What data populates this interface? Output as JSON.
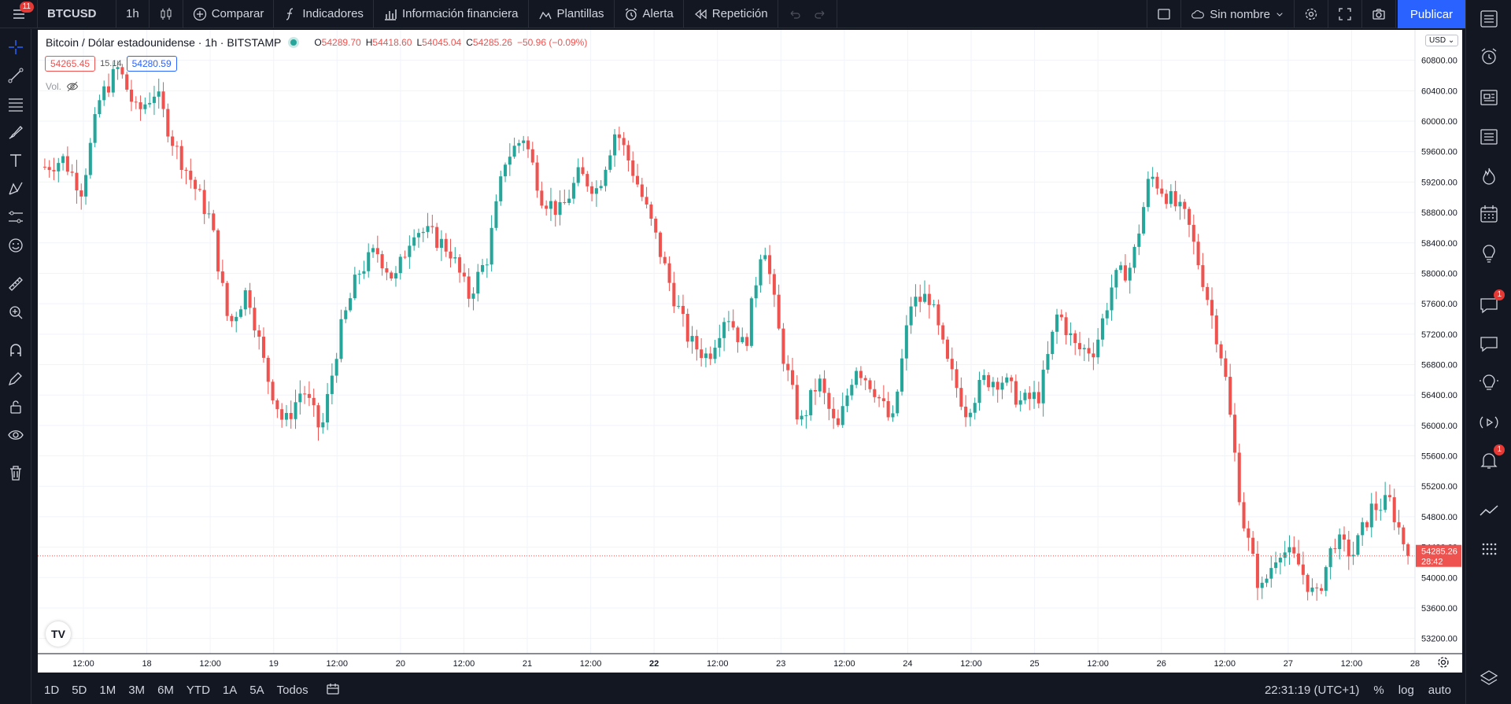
{
  "topbar": {
    "menu_badge": "11",
    "symbol": "BTCUSD",
    "interval": "1h",
    "compare": "Comparar",
    "indicators": "Indicadores",
    "financial_info": "Información financiera",
    "templates": "Plantillas",
    "alert": "Alerta",
    "replay": "Repetición",
    "layout_name": "Sin nombre",
    "publish": "Publicar"
  },
  "legend": {
    "title": "Bitcoin / Dólar estadounidense · 1h · BITSTAMP",
    "o_label": "O",
    "o_value": "54289.70",
    "h_label": "H",
    "h_value": "54418.60",
    "l_label": "L",
    "l_value": "54045.04",
    "c_label": "C",
    "c_value": "54285.26",
    "change": "−50.96 (−0.09%)",
    "bid": "54265.45",
    "spread": "15.14",
    "ask": "54280.59",
    "vol_label": "Vol."
  },
  "currency": "USD",
  "right_badges": {
    "chat": "1",
    "alerts": "1"
  },
  "bottombar": {
    "ranges": [
      "1D",
      "5D",
      "1M",
      "3M",
      "6M",
      "YTD",
      "1A",
      "5A",
      "Todos"
    ],
    "clock": "22:31:19 (UTC+1)",
    "percent": "%",
    "log": "log",
    "auto": "auto"
  },
  "colors": {
    "up": "#26a69a",
    "down": "#ef5350",
    "accent": "#2962ff",
    "bg": "#131722"
  },
  "chart_data": {
    "type": "candlestick",
    "title": "Bitcoin / Dólar estadounidense · 1h · BITSTAMP",
    "ylim": [
      53000,
      61200
    ],
    "y_ticks": [
      53200,
      53600,
      54000,
      54400,
      54800,
      55200,
      55600,
      56000,
      56400,
      56800,
      57200,
      57600,
      58000,
      58400,
      58800,
      59200,
      59600,
      60000,
      60400,
      60800
    ],
    "x_ticks": [
      "12:00",
      "18",
      "12:00",
      "19",
      "12:00",
      "20",
      "12:00",
      "21",
      "12:00",
      "22",
      "12:00",
      "23",
      "12:00",
      "24",
      "12:00",
      "25",
      "12:00",
      "26",
      "12:00",
      "27",
      "12:00",
      "28"
    ],
    "x_tick_bold": [
      false,
      false,
      false,
      false,
      false,
      false,
      false,
      false,
      false,
      true,
      false,
      false,
      false,
      false,
      false,
      false,
      false,
      false,
      false,
      false,
      false,
      false
    ],
    "last_price": "54285.26",
    "last_price_value": 54285.26,
    "countdown": "28:42",
    "trend_path": [
      59400,
      59500,
      59100,
      60300,
      60700,
      60100,
      60400,
      59700,
      59200,
      58700,
      57300,
      57800,
      56700,
      56000,
      56500,
      55900,
      57200,
      58000,
      58300,
      57900,
      58600,
      58500,
      58300,
      57700,
      58200,
      59500,
      59800,
      59000,
      58800,
      59300,
      59100,
      59900,
      59300,
      58600,
      57800,
      57100,
      56900,
      57500,
      57000,
      58500,
      57000,
      56000,
      56600,
      55900,
      56800,
      56500,
      56000,
      57600,
      57700,
      56800,
      56200,
      56600,
      56600,
      56300,
      56400,
      57500,
      57000,
      57000,
      57900,
      58100,
      59300,
      59000,
      58700,
      57800,
      56800,
      54800,
      53800,
      54400,
      54200,
      53700,
      54500,
      54300,
      54900,
      55000,
      54300
    ]
  }
}
